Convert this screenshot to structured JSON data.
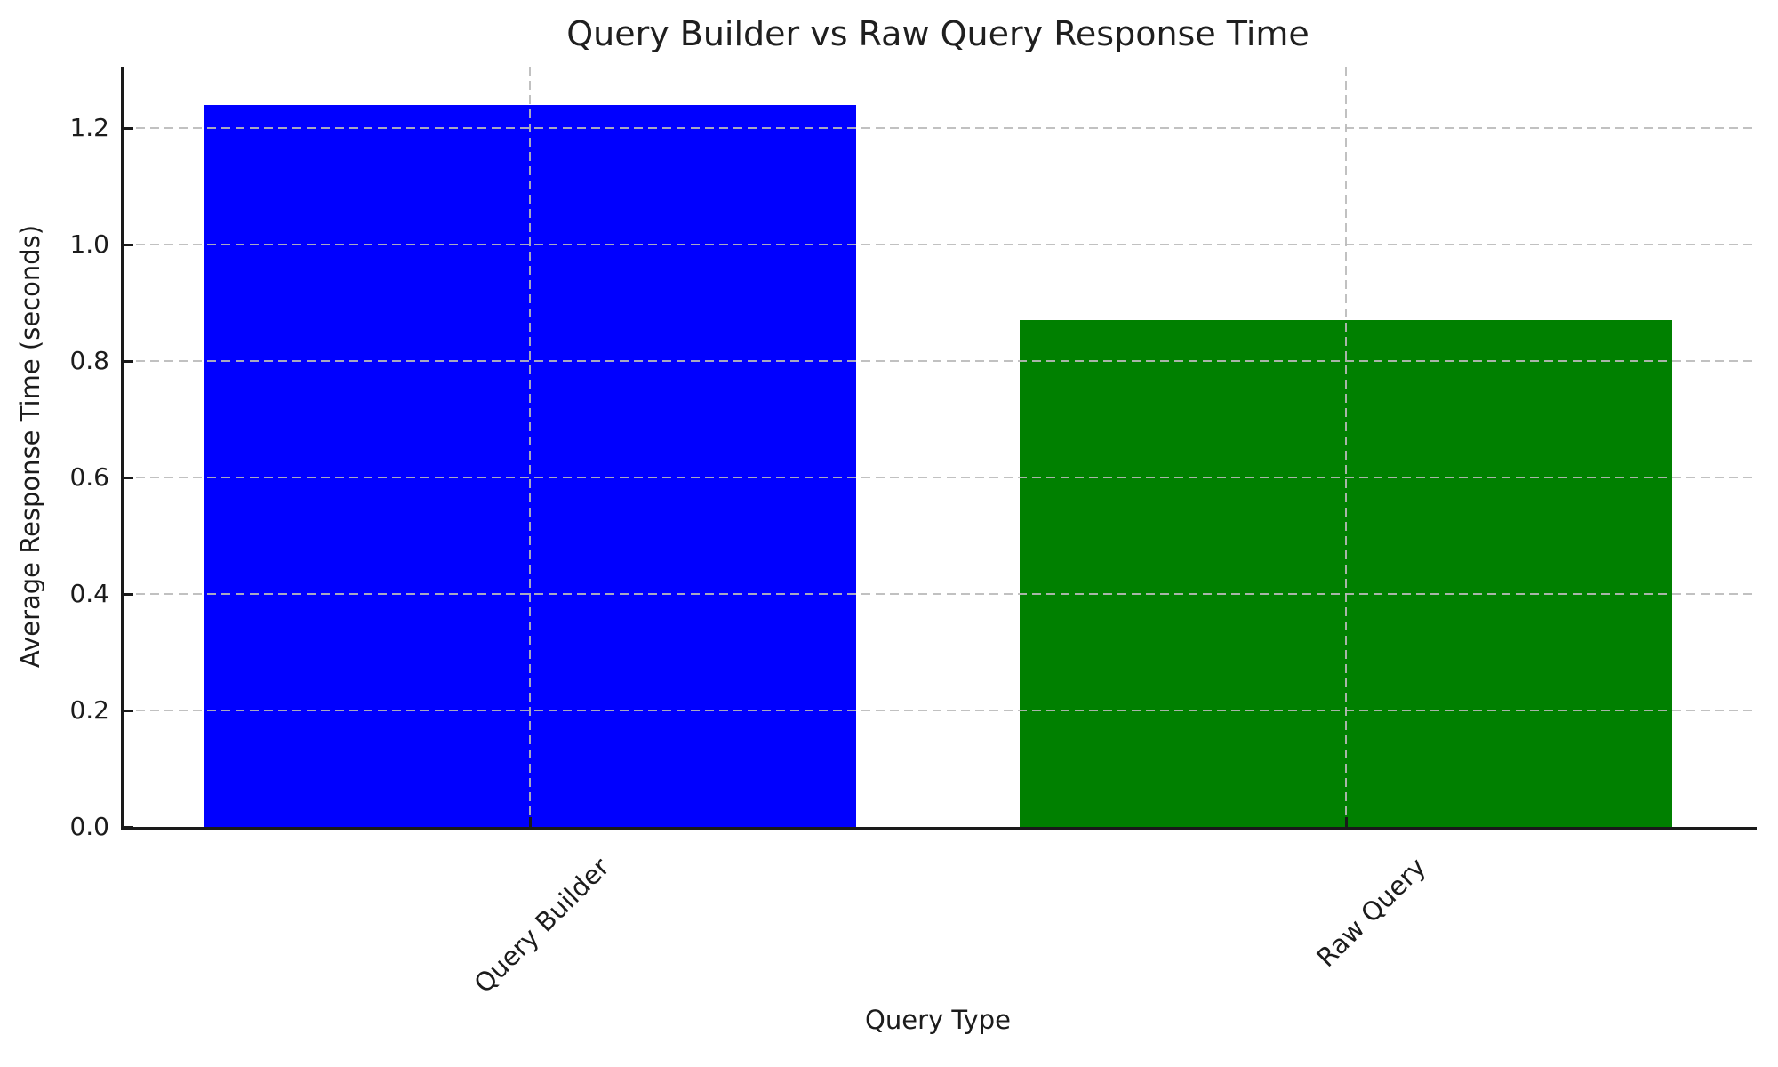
{
  "chart_data": {
    "type": "bar",
    "title": "Query Builder vs Raw Query Response Time",
    "xlabel": "Query Type",
    "ylabel": "Average Response Time (seconds)",
    "categories": [
      "Query Builder",
      "Raw Query"
    ],
    "values": [
      1.24,
      0.87
    ],
    "bar_colors": [
      "#0000ff",
      "#008000"
    ],
    "ylim": [
      0,
      1.306
    ],
    "yticks": [
      0,
      0.2,
      0.4,
      0.6,
      0.8,
      1.0,
      1.2
    ],
    "ytick_labels": [
      "0.0",
      "0.2",
      "0.4",
      "0.6",
      "0.8",
      "1.0",
      "1.2"
    ],
    "xtick_rotation_degrees": 45,
    "grid": {
      "style": "dashed",
      "color": "#bababa",
      "axes": "both",
      "drawn_above_bars": true
    },
    "tick_direction": "in",
    "legend": "none",
    "background_color": "#ffffff"
  }
}
